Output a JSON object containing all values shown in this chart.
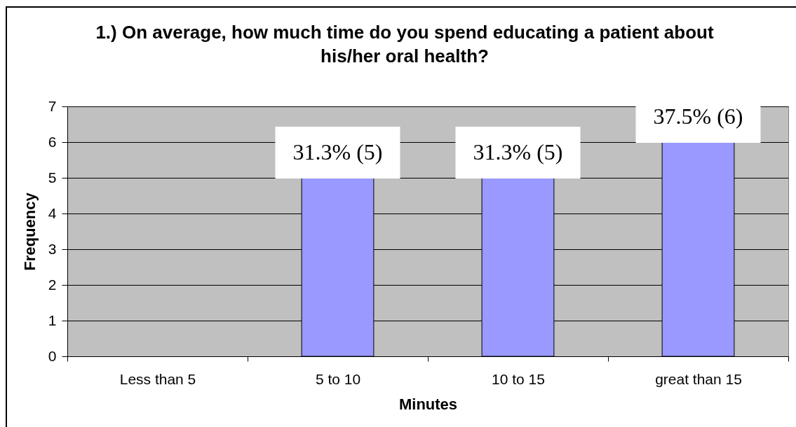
{
  "chart_data": {
    "type": "bar",
    "title": "1.) On average, how much time do you spend educating a patient about his/her oral health?",
    "xlabel": "Minutes",
    "ylabel": "Frequency",
    "categories": [
      "Less than 5",
      "5 to 10",
      "10 to 15",
      "great than 15"
    ],
    "values": [
      0,
      5,
      5,
      6
    ],
    "color": "#9999ff",
    "value_labels": [
      null,
      "31.3% (5)",
      "31.3% (5)",
      "37.5% (6)"
    ],
    "ylim": [
      0,
      7
    ],
    "yticks": [
      0,
      1,
      2,
      3,
      4,
      5,
      6,
      7
    ],
    "grid": "y"
  }
}
